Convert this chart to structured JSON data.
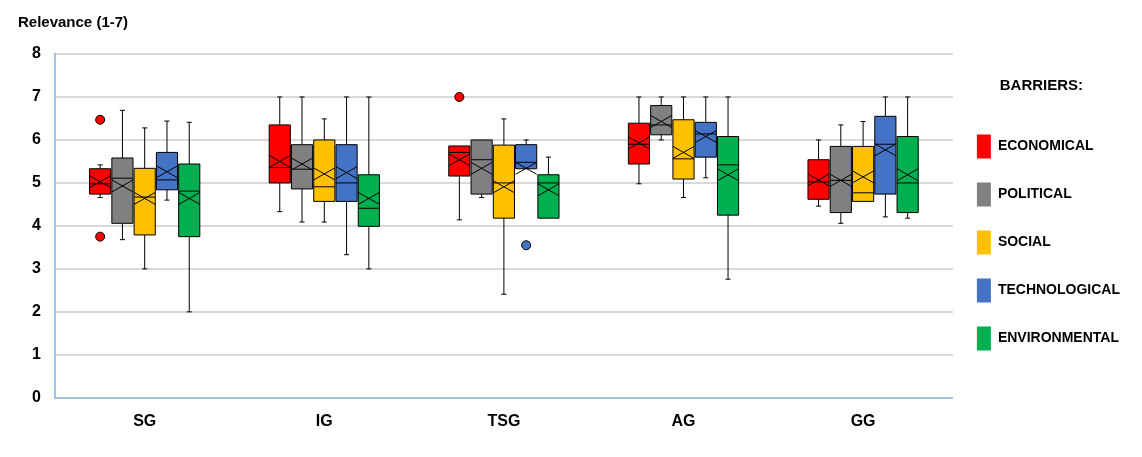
{
  "chart_data": {
    "type": "box",
    "ylabel": "Relevance (1-7)",
    "legend_title": "BARRIERS:",
    "categories": [
      "SG",
      "IG",
      "TSG",
      "AG",
      "GG"
    ],
    "ylim": [
      0,
      8
    ],
    "yticks": [
      0,
      1,
      2,
      3,
      4,
      5,
      6,
      7,
      8
    ],
    "grid": "y",
    "legend": "right",
    "series": [
      {
        "name": "ECONOMICAL",
        "color": "#ff0000",
        "boxes": [
          {
            "low": 4.66,
            "q1": 4.74,
            "median": 4.98,
            "q3": 5.33,
            "high": 5.42,
            "mean": 5.03,
            "outliers": [
              6.47,
              3.75
            ]
          },
          {
            "low": 4.33,
            "q1": 5.0,
            "median": 5.36,
            "q3": 6.35,
            "high": 7,
            "mean": 5.5
          },
          {
            "low": 4.14,
            "q1": 5.16,
            "median": 5.71,
            "q3": 5.86,
            "high": 5.86,
            "mean": 5.54,
            "outliers": [
              7.0
            ]
          },
          {
            "low": 4.98,
            "q1": 5.44,
            "median": 5.9,
            "q3": 6.39,
            "high": 7,
            "mean": 5.93
          },
          {
            "low": 4.46,
            "q1": 4.62,
            "median": 5.02,
            "q3": 5.54,
            "high": 6.0,
            "mean": 5.07
          }
        ]
      },
      {
        "name": "POLITICAL",
        "color": "#808080",
        "boxes": [
          {
            "low": 3.68,
            "q1": 4.06,
            "median": 5.11,
            "q3": 5.58,
            "high": 6.69,
            "mean": 4.93
          },
          {
            "low": 4.09,
            "q1": 4.86,
            "median": 5.32,
            "q3": 5.89,
            "high": 7,
            "mean": 5.44
          },
          {
            "low": 4.66,
            "q1": 4.74,
            "median": 5.54,
            "q3": 6.0,
            "high": 6.0,
            "mean": 5.34
          },
          {
            "low": 6.0,
            "q1": 6.12,
            "median": 6.35,
            "q3": 6.8,
            "high": 7,
            "mean": 6.43
          },
          {
            "low": 4.06,
            "q1": 4.31,
            "median": 5.06,
            "q3": 5.85,
            "high": 6.35,
            "mean": 5.06
          }
        ]
      },
      {
        "name": "SOCIAL",
        "color": "#ffc000",
        "boxes": [
          {
            "low": 3.0,
            "q1": 3.79,
            "median": 4.67,
            "q3": 5.34,
            "high": 6.28,
            "mean": 4.64
          },
          {
            "low": 4.09,
            "q1": 4.57,
            "median": 4.91,
            "q3": 6.0,
            "high": 6.49,
            "mean": 5.21
          },
          {
            "low": 2.41,
            "q1": 4.18,
            "median": 5.0,
            "q3": 5.88,
            "high": 6.49,
            "mean": 4.91
          },
          {
            "low": 4.66,
            "q1": 5.09,
            "median": 5.56,
            "q3": 6.47,
            "high": 7,
            "mean": 5.71
          },
          {
            "low": 4.57,
            "q1": 4.57,
            "median": 4.77,
            "q3": 5.85,
            "high": 6.43,
            "mean": 5.14
          }
        ]
      },
      {
        "name": "TECHNOLOGICAL",
        "color": "#4472c4",
        "boxes": [
          {
            "low": 4.6,
            "q1": 4.84,
            "median": 5.07,
            "q3": 5.71,
            "high": 6.44,
            "mean": 5.26
          },
          {
            "low": 3.33,
            "q1": 4.57,
            "median": 5.0,
            "q3": 5.89,
            "high": 7,
            "mean": 5.24
          },
          {
            "low": 5.33,
            "q1": 5.33,
            "median": 5.48,
            "q3": 5.89,
            "high": 6.0,
            "mean": 5.34,
            "outliers": [
              3.55
            ]
          },
          {
            "low": 5.12,
            "q1": 5.6,
            "median": 6.14,
            "q3": 6.41,
            "high": 7,
            "mean": 6.08
          },
          {
            "low": 4.21,
            "q1": 4.74,
            "median": 5.9,
            "q3": 6.55,
            "high": 7,
            "mean": 5.77
          }
        ]
      },
      {
        "name": "ENVIRONMENTAL",
        "color": "#00b050",
        "boxes": [
          {
            "low": 2.0,
            "q1": 3.75,
            "median": 4.81,
            "q3": 5.44,
            "high": 6.41,
            "mean": 4.64
          },
          {
            "low": 3.0,
            "q1": 3.99,
            "median": 4.41,
            "q3": 5.19,
            "high": 7,
            "mean": 4.64
          },
          {
            "low": 4.18,
            "q1": 4.18,
            "median": 5.0,
            "q3": 5.19,
            "high": 5.6,
            "mean": 4.84
          },
          {
            "low": 2.76,
            "q1": 4.25,
            "median": 5.42,
            "q3": 6.08,
            "high": 7,
            "mean": 5.19
          },
          {
            "low": 4.18,
            "q1": 4.31,
            "median": 5.0,
            "q3": 6.08,
            "high": 7,
            "mean": 5.19
          }
        ]
      }
    ]
  }
}
